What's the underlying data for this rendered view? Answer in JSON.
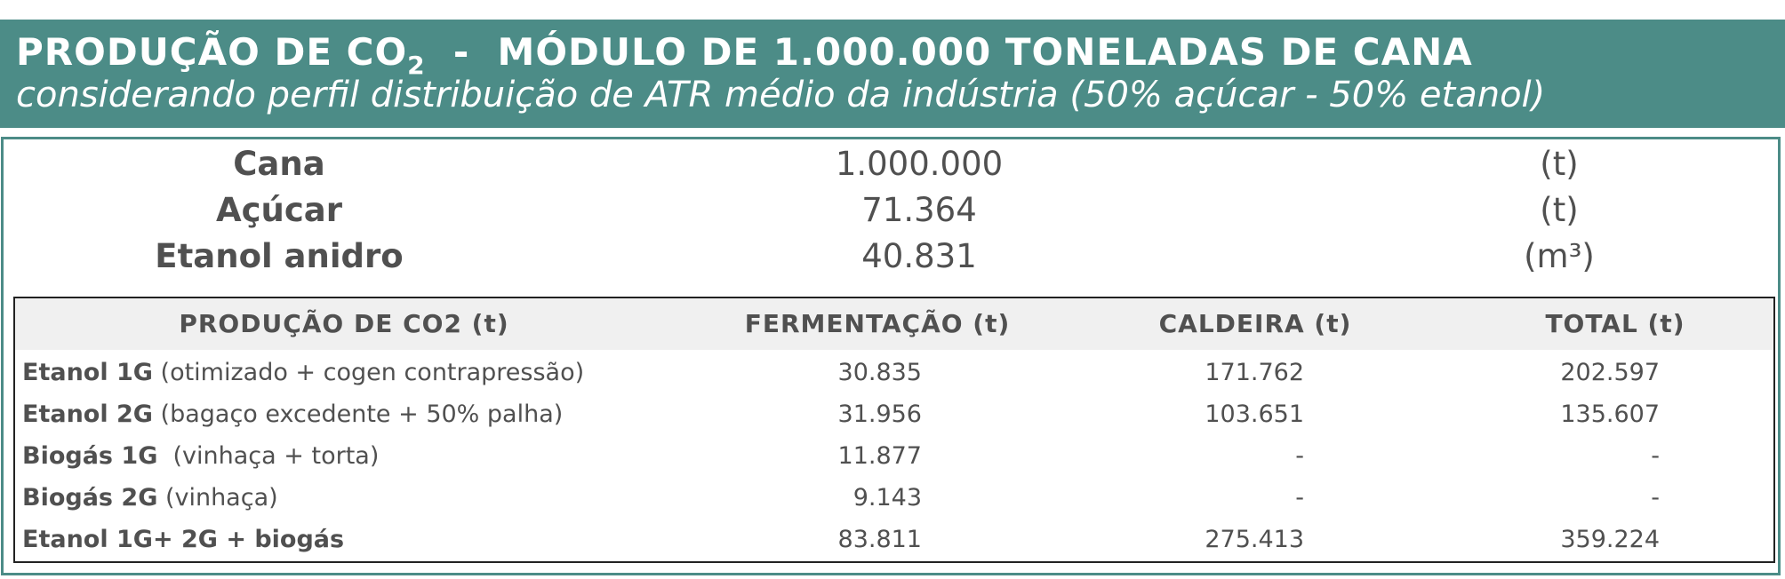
{
  "header": {
    "title_main": "PRODUÇÃO DE CO",
    "title_sub": "2",
    "title_rest": "  -  MÓDULO DE 1.000.000 TONELADAS DE CANA",
    "subtitle": "considerando perfil distribuição de ATR médio da indústria (50% açúcar - 50% etanol)"
  },
  "summary": [
    {
      "label": "Cana",
      "value": "1.000.000",
      "unit": "(t)"
    },
    {
      "label": "Açúcar",
      "value": "71.364",
      "unit": "(t)"
    },
    {
      "label": "Etanol anidro",
      "value": "40.831",
      "unit": "(m³)"
    }
  ],
  "table": {
    "headers": [
      "PRODUÇÃO DE CO2 (t)",
      "FERMENTAÇÃO (t)",
      "CALDEIRA (t)",
      "TOTAL (t)"
    ],
    "rows": [
      {
        "name_bold": "Etanol 1G",
        "name_rest": " (otimizado + cogen contrapressão)",
        "fermentacao": "30.835",
        "caldeira": "171.762",
        "total": "202.597"
      },
      {
        "name_bold": "Etanol 2G",
        "name_rest": " (bagaço excedente + 50% palha)",
        "fermentacao": "31.956",
        "caldeira": "103.651",
        "total": "135.607"
      },
      {
        "name_bold": "Biogás 1G",
        "name_rest": "  (vinhaça + torta)",
        "fermentacao": "11.877",
        "caldeira": "-",
        "total": "-"
      },
      {
        "name_bold": "Biogás 2G",
        "name_rest": " (vinhaça)",
        "fermentacao": "9.143",
        "caldeira": "-",
        "total": "-"
      },
      {
        "name_bold": "Etanol 1G+ 2G + biogás",
        "name_rest": "",
        "fermentacao": "83.811",
        "caldeira": "275.413",
        "total": "359.224"
      }
    ]
  },
  "colors": {
    "header_bg": "#4c8c87",
    "table_header_bg": "#f0f0f0",
    "text": "#505050"
  }
}
